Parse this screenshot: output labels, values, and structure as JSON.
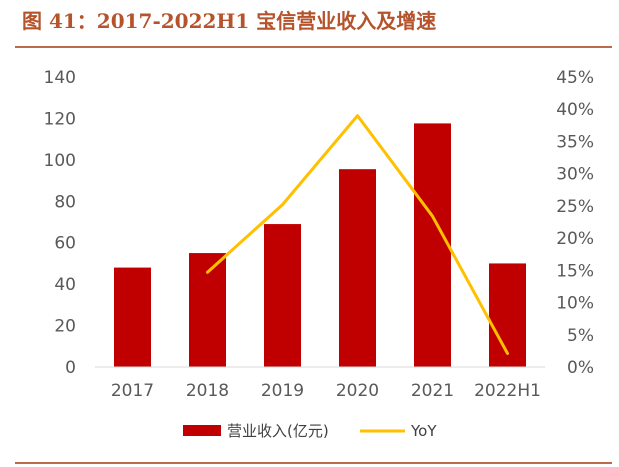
{
  "title": "图 41：2017-2022H1 宝信营业收入及增速",
  "chart_data": {
    "type": "bar",
    "categories": [
      "2017",
      "2018",
      "2019",
      "2020",
      "2021",
      "2022H1"
    ],
    "series": [
      {
        "name": "营业收入(亿元)",
        "type": "bar",
        "axis": "left",
        "color": "#c00000",
        "values": [
          48,
          55,
          69,
          95.5,
          117.6,
          50
        ]
      },
      {
        "name": "YoY",
        "type": "line",
        "axis": "right",
        "color": "#ffc000",
        "values": [
          null,
          0.147,
          0.252,
          0.39,
          0.234,
          0.021
        ]
      }
    ],
    "y_left": {
      "min": 0,
      "max": 140,
      "ticks": [
        "0",
        "20",
        "40",
        "60",
        "80",
        "100",
        "120",
        "140"
      ]
    },
    "y_right": {
      "min": 0,
      "max": 0.45,
      "ticks": [
        "0%",
        "5%",
        "10%",
        "15%",
        "20%",
        "25%",
        "30%",
        "35%",
        "40%",
        "45%"
      ]
    },
    "grid": false,
    "legend": "bottom"
  }
}
